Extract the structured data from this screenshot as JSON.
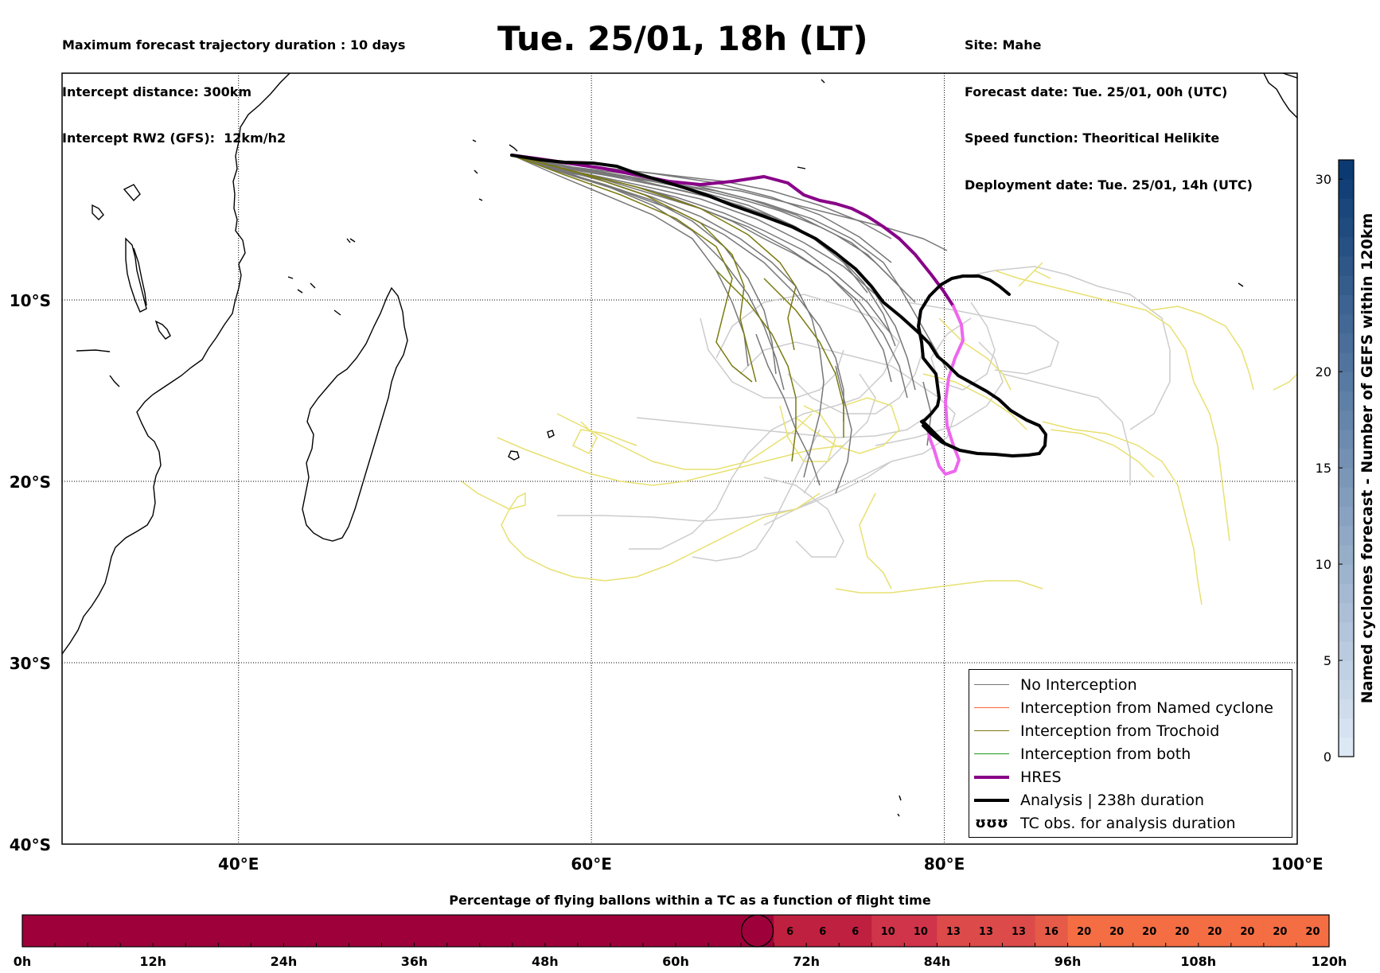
{
  "header": {
    "left": [
      "Maximum forecast trajectory duration : 10 days",
      "Intercept distance: 300km",
      "Intercept RW2 (GFS):  12km/h2"
    ],
    "title": "Tue. 25/01, 18h (LT)",
    "right": [
      "Site: Mahe",
      "Forecast date: Tue. 25/01, 00h (UTC)",
      "Speed function: Theoritical Helikite",
      "Deployment date: Tue. 25/01, 14h (UTC)"
    ]
  },
  "map": {
    "extent": {
      "lon": [
        30,
        100
      ],
      "lat": [
        -40,
        2.5
      ]
    },
    "lat_ticks": [
      {
        "value": -10,
        "label": "10°S"
      },
      {
        "value": -20,
        "label": "20°S"
      },
      {
        "value": -30,
        "label": "30°S"
      },
      {
        "value": -40,
        "label": "40°S"
      }
    ],
    "lon_ticks": [
      {
        "value": 40,
        "label": "40°E"
      },
      {
        "value": 60,
        "label": "60°E"
      },
      {
        "value": 80,
        "label": "80°E"
      },
      {
        "value": 100,
        "label": "100°E"
      }
    ],
    "colors": {
      "no_interception": "#777777",
      "named_cyclone": "#ff6633",
      "trochoid": "#7a7a10",
      "both": "#1a9a1a",
      "hres": "#880088",
      "analysis": "#000000",
      "gefs_light": "#cccccc",
      "gefs_yellow": "#e8e070",
      "hres_tail": "#ee66ee"
    }
  },
  "legend": {
    "items": [
      {
        "label": "No Interception",
        "color": "#777777",
        "width": 1.5
      },
      {
        "label": "Interception from Named cyclone",
        "color": "#ff6633",
        "width": 1.5
      },
      {
        "label": "Interception from Trochoid",
        "color": "#7a7a10",
        "width": 1.5
      },
      {
        "label": "Interception from both",
        "color": "#1a9a1a",
        "width": 1.5
      },
      {
        "label": "HRES",
        "color": "#880088",
        "width": 4
      },
      {
        "label": "Analysis | 238h duration",
        "color": "#000000",
        "width": 4
      },
      {
        "label": "TC obs. for analysis duration",
        "symbol": "ʊʊʊ"
      }
    ]
  },
  "colorbar": {
    "title": "Named cyclones forecast - Number of GEFS within 120km",
    "range": [
      0,
      31
    ],
    "ticks": [
      0,
      5,
      10,
      15,
      20,
      30
    ],
    "light": "#dde8f5",
    "dark": "#0b3a72"
  },
  "flight_bar": {
    "title": "Percentage of flying ballons within a TC as a function of flight time",
    "hours": [
      "0h",
      "12h",
      "24h",
      "36h",
      "48h",
      "60h",
      "72h",
      "84h",
      "96h",
      "108h",
      "120h"
    ],
    "cell_hours": 3,
    "values": [
      0,
      0,
      0,
      0,
      0,
      0,
      0,
      0,
      0,
      0,
      0,
      0,
      0,
      0,
      0,
      0,
      0,
      0,
      0,
      0,
      0,
      0,
      0,
      6,
      6,
      6,
      10,
      10,
      13,
      13,
      13,
      16,
      20,
      20,
      20,
      20,
      20,
      20,
      20,
      20
    ],
    "marker_hour": 67.5,
    "colors": {
      "0": "#9e003a",
      "6": "#c0203f",
      "10": "#d0344a",
      "13": "#dc4a4a",
      "16": "#e65a48",
      "20": "#f46d43"
    }
  }
}
